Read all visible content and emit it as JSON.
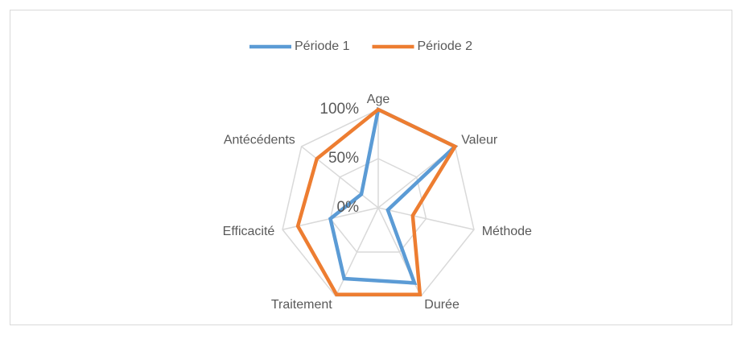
{
  "chart_data": {
    "type": "radar",
    "categories": [
      "Age",
      "Valeur",
      "Méthode",
      "Durée",
      "Traitement",
      "Efficacité",
      "Antécédents"
    ],
    "series": [
      {
        "name": "Période 1",
        "color": "#5b9bd5",
        "values": [
          100,
          100,
          10,
          85,
          80,
          50,
          22
        ]
      },
      {
        "name": "Période 2",
        "color": "#ed7d31",
        "values": [
          100,
          100,
          36,
          98,
          98,
          84,
          80
        ]
      }
    ],
    "ylim": [
      0,
      100
    ],
    "yticks": [
      {
        "value": 0,
        "label": "0%"
      },
      {
        "value": 50,
        "label": "50%"
      },
      {
        "value": 100,
        "label": "100%"
      }
    ],
    "grid": true,
    "legend": "top"
  }
}
